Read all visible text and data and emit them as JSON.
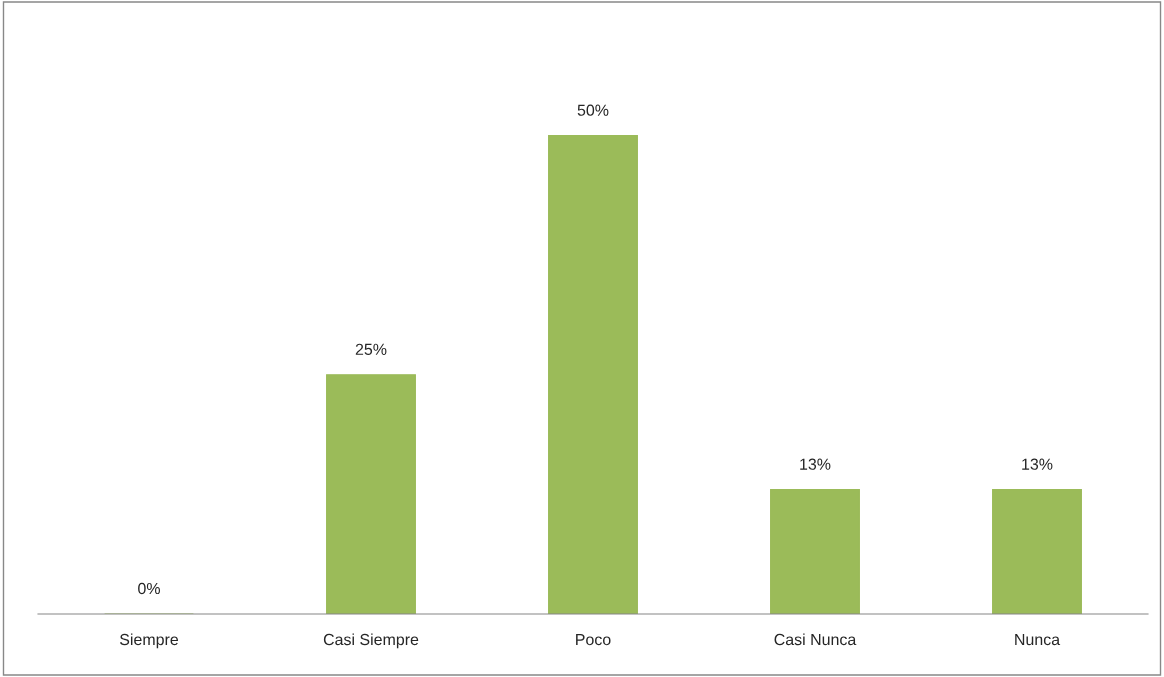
{
  "chart_data": {
    "type": "bar",
    "categories": [
      "Siempre",
      "Casi Siempre",
      "Poco",
      "Casi Nunca",
      "Nunca"
    ],
    "values": [
      0,
      25,
      50,
      13,
      13
    ],
    "value_labels": [
      "0%",
      "25%",
      "50%",
      "13%",
      "13%"
    ],
    "color": "#9bbb59",
    "grid": false,
    "legend": false
  }
}
